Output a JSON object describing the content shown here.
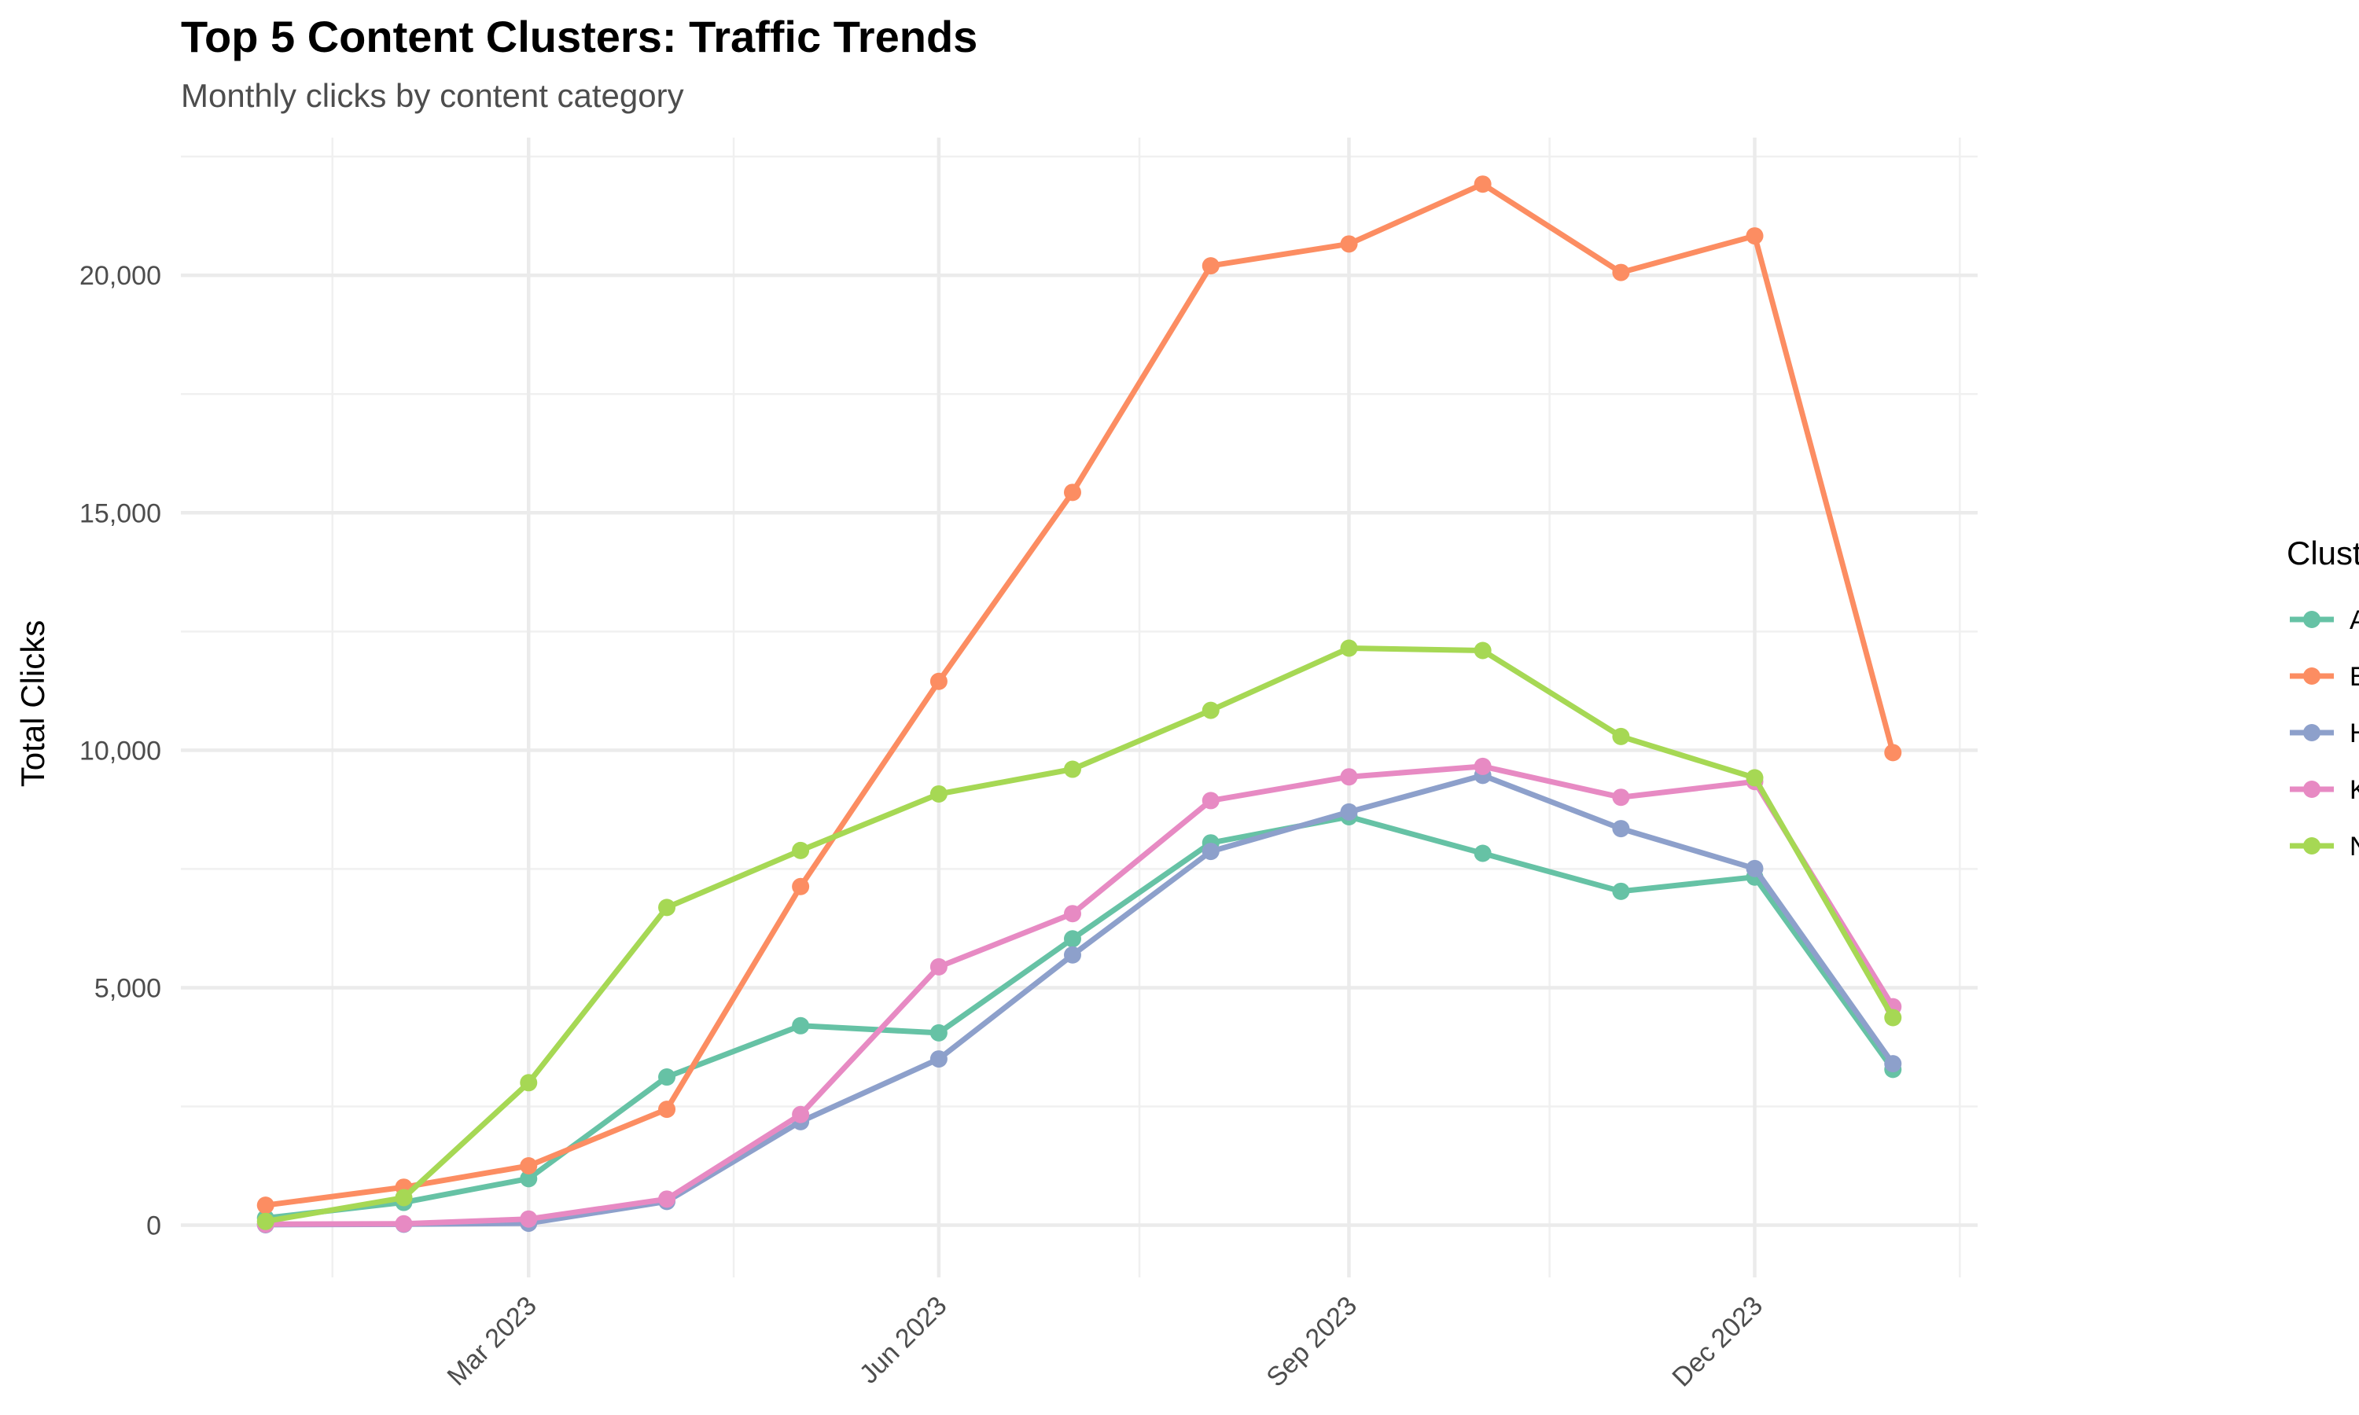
{
  "chart_data": {
    "type": "line",
    "title": "Top 5 Content Clusters: Traffic Trends",
    "subtitle": "Monthly clicks by content category",
    "xlabel": "",
    "ylabel": "Total Clicks",
    "x": [
      "2023-01-01",
      "2023-02-01",
      "2023-03-01",
      "2023-04-01",
      "2023-05-01",
      "2023-06-01",
      "2023-07-01",
      "2023-08-01",
      "2023-09-01",
      "2023-10-01",
      "2023-11-01",
      "2023-12-01",
      "2024-01-01"
    ],
    "x_ticks": [
      {
        "date": "2023-03-01",
        "label": "Mar 2023"
      },
      {
        "date": "2023-06-01",
        "label": "Jun 2023"
      },
      {
        "date": "2023-09-01",
        "label": "Sep 2023"
      },
      {
        "date": "2023-12-01",
        "label": "Dec 2023"
      }
    ],
    "x_minor_ticks": [
      "2023-01-16",
      "2023-04-16",
      "2023-07-16",
      "2023-10-16",
      "2024-01-16"
    ],
    "xlim": [
      "2022-12-13",
      "2024-01-20"
    ],
    "y_ticks": [
      0,
      5000,
      10000,
      15000,
      20000
    ],
    "y_tick_labels": [
      "0",
      "5,000",
      "10,000",
      "15,000",
      "20,000"
    ],
    "ylim": [
      -1100,
      22900
    ],
    "grid": true,
    "legend_title": "Cluster",
    "legend_position": "right",
    "series": [
      {
        "name": "Arm & Shoulder",
        "color": "#66c2a5",
        "values": [
          150,
          480,
          980,
          3120,
          4200,
          4050,
          6030,
          8050,
          8600,
          7830,
          7030,
          7330,
          3280
        ]
      },
      {
        "name": "Back",
        "color": "#fc8d62",
        "values": [
          420,
          800,
          1250,
          2440,
          7130,
          11450,
          15430,
          20200,
          20660,
          21920,
          20060,
          20830,
          9950
        ]
      },
      {
        "name": "Hip",
        "color": "#8da0cb",
        "values": [
          10,
          20,
          40,
          500,
          2180,
          3500,
          5690,
          7870,
          8700,
          9470,
          8350,
          7510,
          3400
        ]
      },
      {
        "name": "Knee",
        "color": "#e78ac3",
        "values": [
          20,
          30,
          130,
          550,
          2330,
          5440,
          6560,
          8940,
          9440,
          9660,
          9010,
          9340,
          4600
        ]
      },
      {
        "name": "Neck",
        "color": "#a6d854",
        "values": [
          80,
          580,
          3000,
          6690,
          7890,
          9080,
          9600,
          10840,
          12150,
          12100,
          10290,
          9420,
          4370
        ]
      }
    ]
  }
}
